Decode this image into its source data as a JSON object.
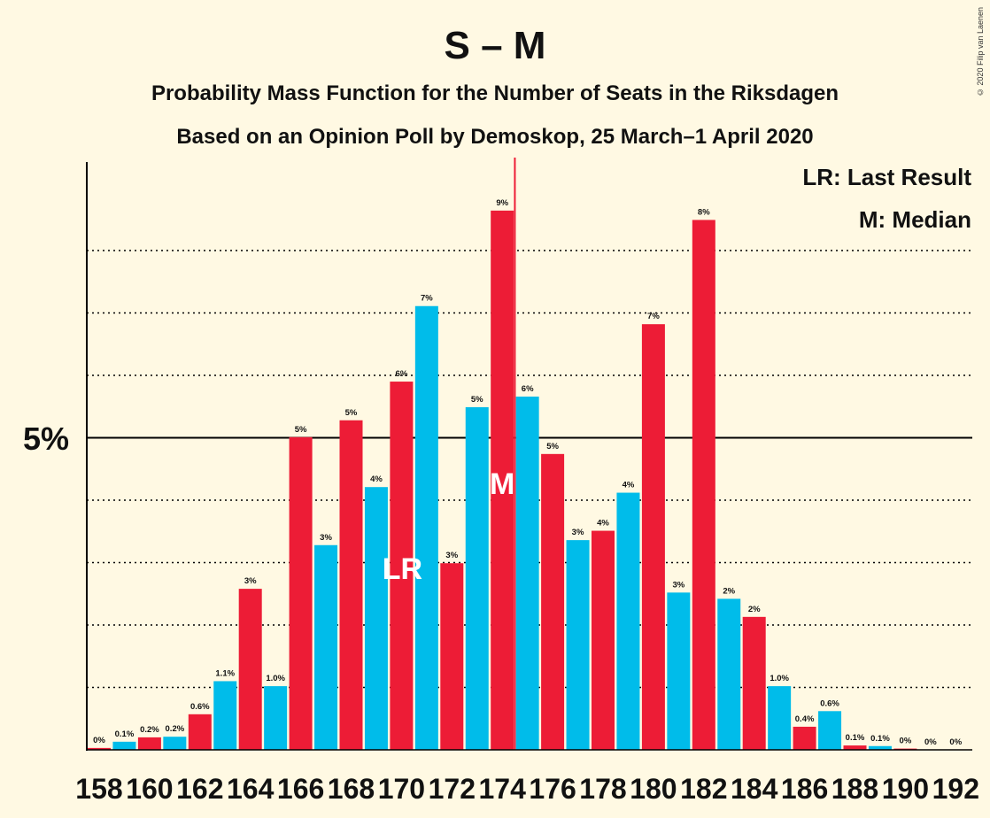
{
  "copyright": "© 2020 Filip van Laenen",
  "chart_data": {
    "type": "bar",
    "title": "S – M",
    "subtitle": "Probability Mass Function for the Number of Seats in the Riksdagen",
    "subtitle2": "Based on an Opinion Poll by Demoskop, 25 March–1 April 2020",
    "legend": [
      "LR: Last Result",
      "M: Median"
    ],
    "legend_placement": "top-right",
    "y_tick_label": "5%",
    "y_tick_value": 5,
    "ylim": [
      0,
      9.4
    ],
    "grid": "dotted every 1%",
    "x_tick_labels": [
      "158",
      "160",
      "162",
      "164",
      "166",
      "168",
      "170",
      "172",
      "174",
      "176",
      "178",
      "180",
      "182",
      "184",
      "186",
      "188",
      "190",
      "192"
    ],
    "categories": [
      158,
      159,
      160,
      161,
      162,
      163,
      164,
      165,
      166,
      167,
      168,
      169,
      170,
      171,
      172,
      173,
      174,
      175,
      176,
      177,
      178,
      179,
      180,
      181,
      182,
      183,
      184,
      185,
      186,
      187,
      188,
      189,
      190,
      191,
      192
    ],
    "values": [
      0.03,
      0.13,
      0.2,
      0.21,
      0.57,
      1.1,
      2.58,
      1.02,
      5.01,
      3.28,
      5.28,
      4.21,
      5.9,
      7.11,
      2.99,
      5.49,
      8.64,
      5.66,
      4.74,
      3.36,
      3.51,
      4.12,
      6.82,
      2.52,
      8.49,
      2.42,
      2.13,
      1.02,
      0.37,
      0.62,
      0.07,
      0.06,
      0.02,
      0.0,
      0.0
    ],
    "labels": [
      "0%",
      "0.1%",
      "0.2%",
      "0.2%",
      "0.6%",
      "1.1%",
      "3%",
      "1.0%",
      "5%",
      "3%",
      "5%",
      "4%",
      "6%",
      "7%",
      "3%",
      "5%",
      "9%",
      "6%",
      "5%",
      "3%",
      "4%",
      "4%",
      "7%",
      "3%",
      "8%",
      "2%",
      "2%",
      "1.0%",
      "0.4%",
      "0.6%",
      "0.1%",
      "0.1%",
      "0%",
      "0%",
      "0%"
    ],
    "colors": {
      "odd_seats": "#00bcea",
      "even_seats": "#ed1c36",
      "median_line": "#ed1c36",
      "background": "#fff9e3"
    },
    "last_result": {
      "seat": 170,
      "label": "LR"
    },
    "median": {
      "seat": 174,
      "label": "M"
    }
  }
}
